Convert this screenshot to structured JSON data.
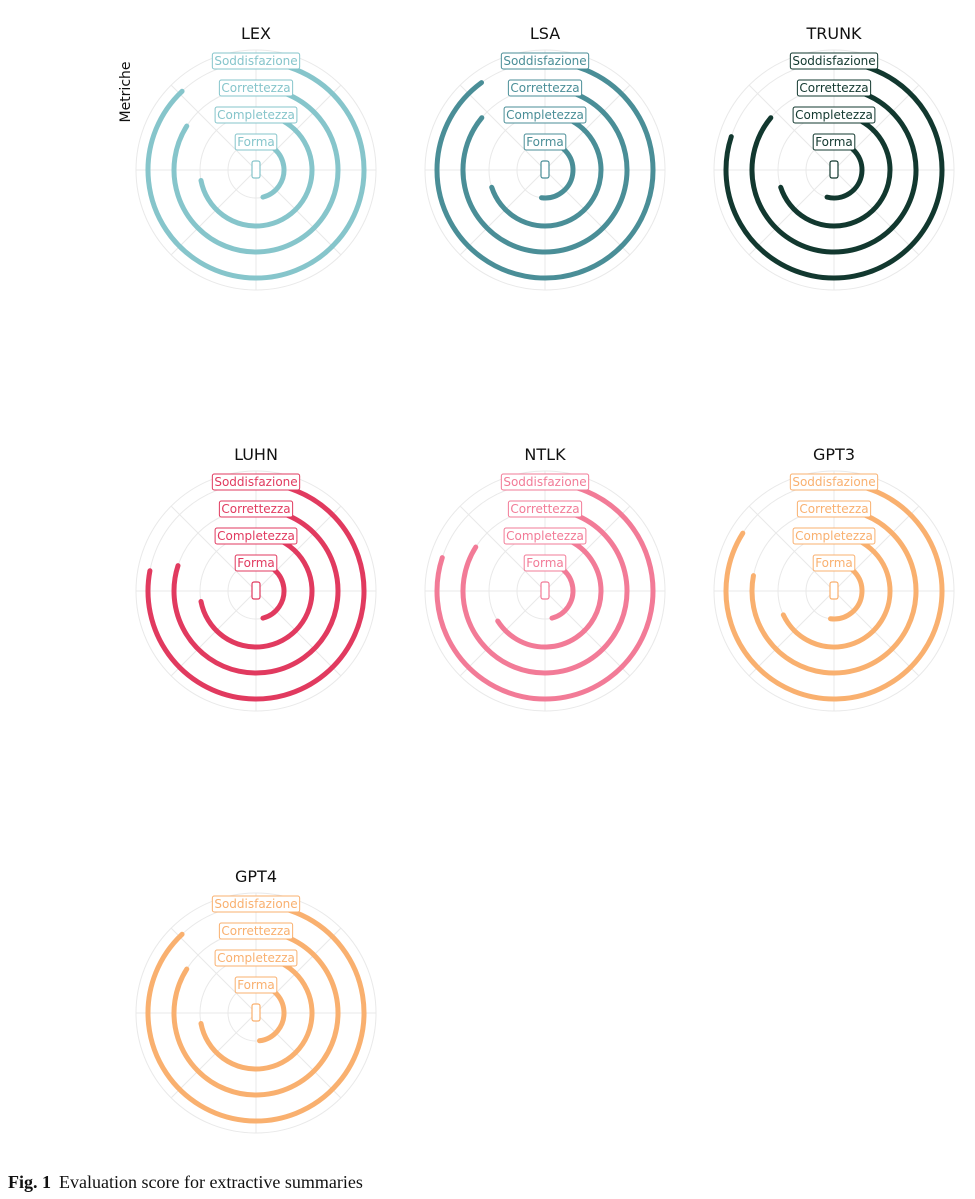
{
  "figure": {
    "caption_label": "Fig. 1",
    "caption_text": "Evaluation score for extractive summaries",
    "ylabel": "Metriche"
  },
  "chart_data": [
    {
      "type": "radial-bar",
      "title": "LEX",
      "color": "#86c5cb",
      "rmax": 5,
      "categories": [
        "Forma",
        "Completezza",
        "Correttezza",
        "Soddisfazione"
      ],
      "values": [
        2.3,
        3.6,
        4.2,
        4.4
      ]
    },
    {
      "type": "radial-bar",
      "title": "LSA",
      "color": "#4a8e97",
      "rmax": 5,
      "categories": [
        "Forma",
        "Completezza",
        "Correttezza",
        "Soddisfazione"
      ],
      "values": [
        2.6,
        3.5,
        4.3,
        4.5
      ]
    },
    {
      "type": "radial-bar",
      "title": "TRUNK",
      "color": "#12382f",
      "rmax": 5,
      "categories": [
        "Forma",
        "Completezza",
        "Correttezza",
        "Soddisfazione"
      ],
      "values": [
        2.7,
        3.5,
        4.3,
        4.0
      ]
    },
    {
      "type": "radial-bar",
      "title": "LUHN",
      "color": "#e13a5f",
      "rmax": 5,
      "categories": [
        "Forma",
        "Completezza",
        "Correttezza",
        "Soddisfazione"
      ],
      "values": [
        2.3,
        3.6,
        4.0,
        3.9
      ]
    },
    {
      "type": "radial-bar",
      "title": "NTLK",
      "color": "#f27b97",
      "rmax": 5,
      "categories": [
        "Forma",
        "Completezza",
        "Correttezza",
        "Soddisfazione"
      ],
      "values": [
        2.3,
        3.3,
        4.2,
        4.0
      ]
    },
    {
      "type": "radial-bar",
      "title": "GPT3",
      "color": "#f9b06f",
      "rmax": 5,
      "categories": [
        "Forma",
        "Completezza",
        "Correttezza",
        "Soddisfazione"
      ],
      "values": [
        2.6,
        3.4,
        3.9,
        4.2
      ]
    },
    {
      "type": "radial-bar",
      "title": "GPT4",
      "color": "#f9b06f",
      "rmax": 5,
      "categories": [
        "Forma",
        "Completezza",
        "Correttezza",
        "Soddisfazione"
      ],
      "values": [
        2.4,
        3.6,
        4.2,
        4.4
      ]
    }
  ]
}
